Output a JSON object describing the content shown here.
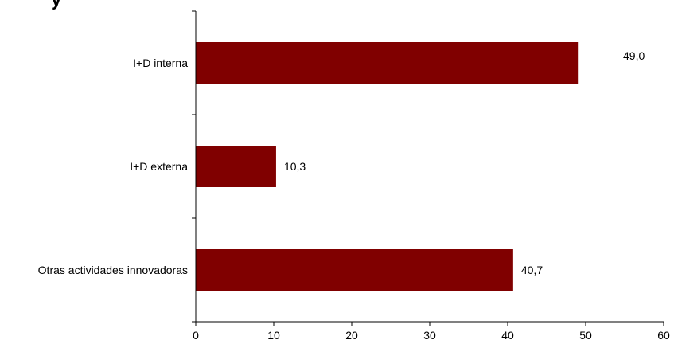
{
  "chart_data": {
    "type": "bar",
    "orientation": "horizontal",
    "categories": [
      "I+D interna",
      "I+D externa",
      "Otras actividades innovadoras"
    ],
    "values": [
      49.0,
      10.3,
      40.7
    ],
    "data_labels": [
      "49,0",
      "10,3",
      "40,7"
    ],
    "xlim": [
      0,
      60
    ],
    "x_ticks": [
      0,
      10,
      20,
      30,
      40,
      50,
      60
    ],
    "x_tick_labels": [
      "0",
      "10",
      "20",
      "30",
      "40",
      "50",
      "60"
    ],
    "grid": false,
    "legend": "none",
    "title_fragment": "y"
  },
  "colors": {
    "bar": "#800000",
    "axis": "#000000",
    "text": "#000000"
  }
}
